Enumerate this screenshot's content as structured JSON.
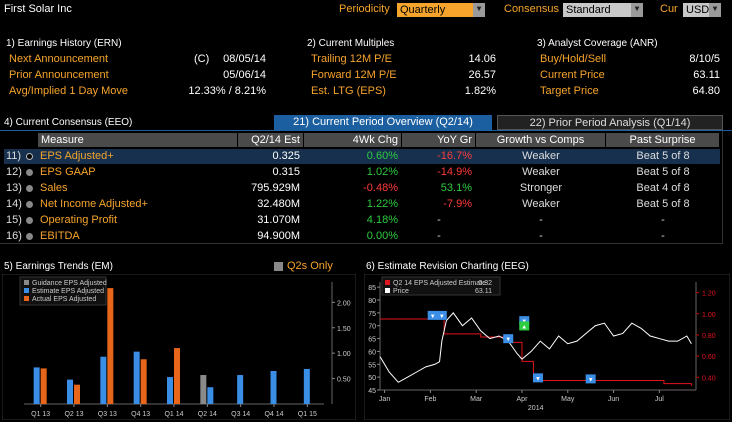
{
  "header": {
    "company": "First Solar Inc",
    "periodicity_label": "Periodicity",
    "periodicity_value": "Quarterly",
    "consensus_label": "Consensus",
    "consensus_value": "Standard",
    "cur_label": "Cur",
    "cur_value": "USD"
  },
  "earnings_history": {
    "title": "1) Earnings History (ERN)",
    "rows": [
      {
        "label": "Next Announcement",
        "flag": "(C)",
        "value": "08/05/14"
      },
      {
        "label": "Prior Announcement",
        "flag": "",
        "value": "05/06/14"
      },
      {
        "label": "Avg/Implied 1 Day Move",
        "flag": "",
        "value": "12.33% / 8.21%"
      }
    ]
  },
  "current_multiples": {
    "title": "2) Current Multiples",
    "rows": [
      {
        "label": "Trailing 12M P/E",
        "value": "14.06"
      },
      {
        "label": "Forward 12M P/E",
        "value": "26.57"
      },
      {
        "label": "Est. LTG (EPS)",
        "value": "1.82%"
      }
    ]
  },
  "analyst_coverage": {
    "title": "3) Analyst Coverage (ANR)",
    "rows": [
      {
        "label": "Buy/Hold/Sell",
        "value": "8/10/5"
      },
      {
        "label": "Current Price",
        "value": "63.11"
      },
      {
        "label": "Target Price",
        "value": "64.80"
      }
    ]
  },
  "consensus": {
    "title": "4) Current Consensus (EEO)",
    "tabs": [
      {
        "label": "21) Current Period Overview (Q2/14)"
      },
      {
        "label": "22) Prior Period Analysis (Q1/14)"
      }
    ],
    "columns": [
      "Measure",
      "Q2/14 Est",
      "4Wk Chg",
      "YoY Gr",
      "Growth vs Comps",
      "Past Surprise"
    ],
    "rows": [
      {
        "num": "11)",
        "measure": "EPS Adjusted+",
        "est": "0.325",
        "chg": "0.60%",
        "chg_dir": "pos",
        "yoy": "-16.7%",
        "yoy_dir": "neg",
        "growth": "Weaker",
        "surprise": "Beat 5 of 8"
      },
      {
        "num": "12)",
        "measure": "EPS GAAP",
        "est": "0.315",
        "chg": "1.02%",
        "chg_dir": "pos",
        "yoy": "-14.9%",
        "yoy_dir": "neg",
        "growth": "Weaker",
        "surprise": "Beat 5 of 8"
      },
      {
        "num": "13)",
        "measure": "Sales",
        "est": "795.929M",
        "chg": "-0.48%",
        "chg_dir": "neg",
        "yoy": "53.1%",
        "yoy_dir": "pos",
        "growth": "Stronger",
        "surprise": "Beat 4 of 8"
      },
      {
        "num": "14)",
        "measure": "Net Income Adjusted+",
        "est": "32.480M",
        "chg": "1.22%",
        "chg_dir": "pos",
        "yoy": "-7.9%",
        "yoy_dir": "neg",
        "growth": "Weaker",
        "surprise": "Beat 5 of 8"
      },
      {
        "num": "15)",
        "measure": "Operating Profit",
        "est": "31.070M",
        "chg": "4.18%",
        "chg_dir": "pos",
        "yoy": "-",
        "yoy_dir": "none",
        "growth": "-",
        "surprise": "-"
      },
      {
        "num": "16)",
        "measure": "EBITDA",
        "est": "94.900M",
        "chg": "0.00%",
        "chg_dir": "pos",
        "yoy": "-",
        "yoy_dir": "none",
        "growth": "-",
        "surprise": "-"
      }
    ]
  },
  "trends": {
    "title": "5) Earnings Trends (EM)",
    "q2s_only": "Q2s Only"
  },
  "revision": {
    "title": "6) Estimate Revision Charting (EEG)"
  },
  "chart_data": [
    {
      "type": "bar",
      "title": "",
      "categories": [
        "Q1 13",
        "Q2 13",
        "Q3 13",
        "Q4 13",
        "Q1 14",
        "Q2 14",
        "Q3 14",
        "Q4 14",
        "Q1 15"
      ],
      "series": [
        {
          "name": "Guidance EPS Adjusted",
          "color": "#8a8a8a",
          "values": [
            null,
            null,
            null,
            null,
            null,
            0.57,
            null,
            null,
            null
          ]
        },
        {
          "name": "Estimate EPS Adjusted",
          "color": "#3a8ee6",
          "values": [
            0.72,
            0.48,
            0.93,
            1.03,
            0.53,
            0.33,
            0.57,
            0.65,
            0.69
          ]
        },
        {
          "name": "Actual EPS Adjusted",
          "color": "#e8661a",
          "values": [
            0.7,
            0.38,
            2.28,
            0.88,
            1.1,
            null,
            null,
            null,
            null
          ]
        }
      ],
      "legend_position": "top-left",
      "ylim": [
        0,
        2.4
      ],
      "yticks": [
        0.5,
        1.0,
        1.5,
        2.0
      ],
      "ytick_labels": [
        "0.50",
        "1.00",
        "1.50",
        "2.00"
      ],
      "y_axis_side": "right",
      "grid": false
    },
    {
      "type": "line",
      "title": "",
      "x_labels": [
        "Jan",
        "Feb",
        "Mar",
        "Apr",
        "May",
        "Jun",
        "Jul"
      ],
      "x_year_label": "2014",
      "series": [
        {
          "name": "Q2 14 EPS Adjusted Estimate",
          "last_value": "0.32",
          "color": "#e0141e",
          "axis": "right",
          "points": [
            [
              0,
              0.95
            ],
            [
              0.9,
              0.95
            ],
            [
              1.35,
              0.95
            ],
            [
              1.4,
              0.81
            ],
            [
              2.1,
              0.81
            ],
            [
              2.2,
              0.78
            ],
            [
              2.7,
              0.78
            ],
            [
              2.75,
              0.73
            ],
            [
              3.05,
              0.73
            ],
            [
              3.1,
              0.55
            ],
            [
              3.3,
              0.55
            ],
            [
              3.35,
              0.37
            ],
            [
              5.2,
              0.37
            ],
            [
              6.2,
              0.34
            ],
            [
              6.8,
              0.32
            ]
          ]
        },
        {
          "name": "Price",
          "last_value": "63.11",
          "color": "#ffffff",
          "axis": "left",
          "points": [
            [
              0,
              58
            ],
            [
              0.2,
              52
            ],
            [
              0.4,
              48
            ],
            [
              0.6,
              50
            ],
            [
              0.8,
              52
            ],
            [
              1.0,
              54
            ],
            [
              1.2,
              55
            ],
            [
              1.3,
              56
            ],
            [
              1.35,
              64
            ],
            [
              1.45,
              72
            ],
            [
              1.6,
              75
            ],
            [
              1.8,
              70
            ],
            [
              2.0,
              73
            ],
            [
              2.2,
              68
            ],
            [
              2.4,
              65
            ],
            [
              2.6,
              66
            ],
            [
              2.8,
              64
            ],
            [
              3.0,
              59
            ],
            [
              3.1,
              57
            ],
            [
              3.3,
              60
            ],
            [
              3.5,
              64
            ],
            [
              3.7,
              61
            ],
            [
              3.9,
              66
            ],
            [
              4.1,
              63
            ],
            [
              4.3,
              64
            ],
            [
              4.5,
              67
            ],
            [
              4.7,
              70
            ],
            [
              4.9,
              71
            ],
            [
              5.1,
              66
            ],
            [
              5.3,
              67
            ],
            [
              5.5,
              71
            ],
            [
              5.7,
              69
            ],
            [
              5.9,
              66
            ],
            [
              6.1,
              65
            ],
            [
              6.3,
              64
            ],
            [
              6.5,
              64
            ],
            [
              6.7,
              66
            ],
            [
              6.8,
              63
            ]
          ]
        }
      ],
      "y_left_ticks": [
        "45",
        "50",
        "55",
        "60",
        "65",
        "70",
        "75",
        "80",
        "85"
      ],
      "y_left_range": [
        45,
        87
      ],
      "y_right_ticks": [
        "0.40",
        "0.60",
        "0.80",
        "1.00",
        "1.20"
      ],
      "y_right_range": [
        0.28,
        1.3
      ],
      "revision_markers": [
        {
          "x": 1.15,
          "y": 0.98,
          "color": "#3a8ee6",
          "label": "▼"
        },
        {
          "x": 1.35,
          "y": 0.98,
          "color": "#3a8ee6",
          "label": "▼"
        },
        {
          "x": 2.8,
          "y": 0.76,
          "color": "#3a8ee6",
          "label": "▼"
        },
        {
          "x": 3.15,
          "y": 0.93,
          "color": "#3a8ee6",
          "label": "▼"
        },
        {
          "x": 3.15,
          "y": 0.88,
          "color": "#2ecc40",
          "label": "▲"
        },
        {
          "x": 3.45,
          "y": 0.39,
          "color": "#3a8ee6",
          "label": "▼"
        },
        {
          "x": 4.6,
          "y": 0.38,
          "color": "#3a8ee6",
          "label": "▼"
        }
      ],
      "legend_position": "top-left"
    }
  ]
}
